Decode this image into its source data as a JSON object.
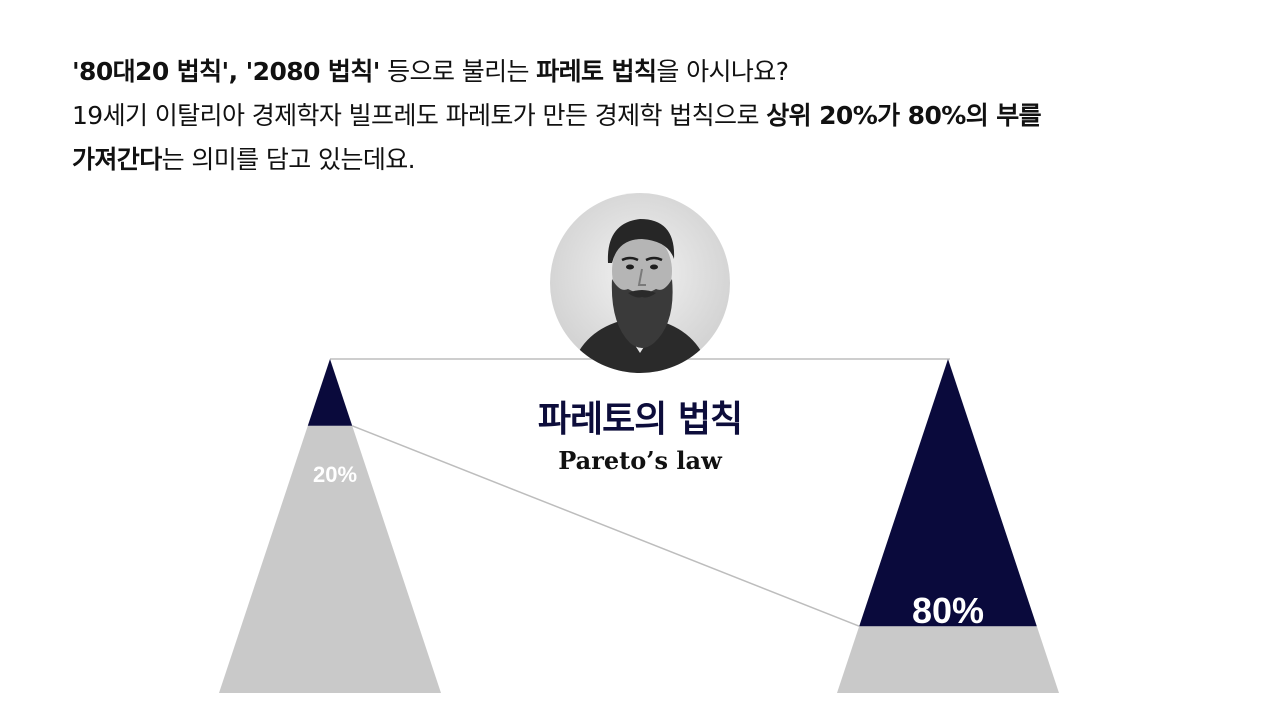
{
  "intro": {
    "line1": {
      "t1": "'80대20 법칙', '2080 법칙'",
      "t2": " 등으로 불리는 ",
      "t3": "파레토 법칙",
      "t4": "을 아시나요?"
    },
    "line2": {
      "t1": "19세기 이탈리아 경제학자 빌프레도 파레토가 만든 경제학 법칙으로 ",
      "t2": "상위 20%가 80%의 부를"
    },
    "line3": {
      "t1": "가져간다",
      "t2": "는 의미를 담고 있는데요."
    }
  },
  "diagram": {
    "title": "파레토의 법칙",
    "subtitle": "Pareto’s law",
    "left_label": "20%",
    "right_label": "80%",
    "left_share": 0.2,
    "right_share": 0.8,
    "colors": {
      "navy": "#0a0a3c",
      "gray": "#c9c9c9",
      "line": "#bdbdbd",
      "title": "#0d0d3b"
    }
  },
  "portrait": {
    "icon": "bearded-man-portrait"
  }
}
